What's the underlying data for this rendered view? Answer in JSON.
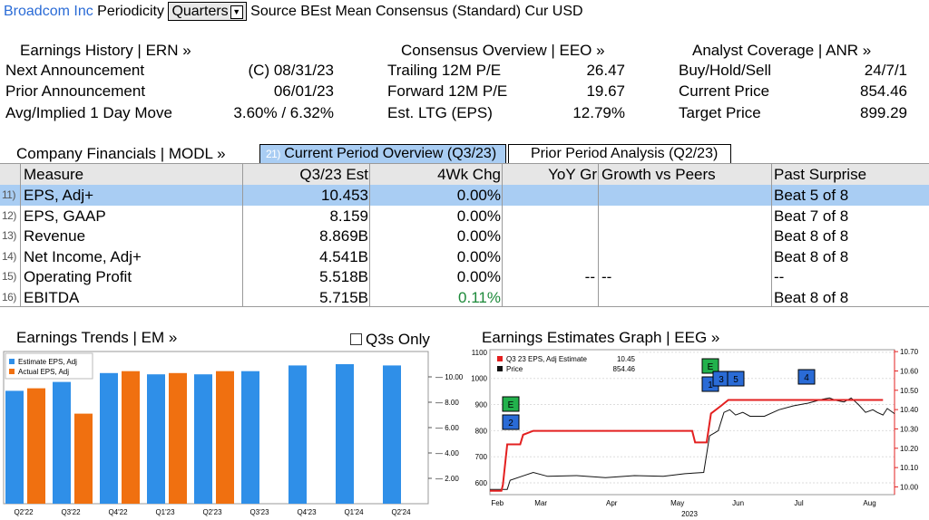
{
  "header": {
    "security": "Broadcom Inc",
    "periodicity_label": "Periodicity",
    "periodicity_value": "Quarters",
    "source_label": "Source",
    "source_value": "BEst Mean Consensus (Standard)",
    "currency_label": "Cur",
    "currency_value": "USD"
  },
  "earnings_history": {
    "title": "Earnings History | ERN »",
    "rows": [
      {
        "label": "Next Announcement",
        "value": "(C)  08/31/23"
      },
      {
        "label": "Prior Announcement",
        "value": "06/01/23"
      },
      {
        "label": "Avg/Implied 1 Day Move",
        "value": "3.60% / 6.32%"
      }
    ]
  },
  "consensus_overview": {
    "title": "Consensus Overview | EEO »",
    "rows": [
      {
        "label": "Trailing 12M P/E",
        "value": "26.47"
      },
      {
        "label": "Forward 12M P/E",
        "value": "19.67"
      },
      {
        "label": "Est. LTG (EPS)",
        "value": "12.79%"
      }
    ]
  },
  "analyst_coverage": {
    "title": "Analyst Coverage | ANR »",
    "rows": [
      {
        "label": "Buy/Hold/Sell",
        "value": "24/7/1"
      },
      {
        "label": "Current Price",
        "value": "854.46"
      },
      {
        "label": "Target Price",
        "value": "899.29"
      }
    ]
  },
  "financials": {
    "title": "Company Financials | MODL »",
    "tab_current_num": "21)",
    "tab_current": "Current Period Overview (Q3/23)",
    "tab_prior": "Prior Period Analysis (Q2/23)",
    "columns": [
      "Measure",
      "Q3/23 Est",
      "4Wk Chg",
      "YoY Gr",
      "Growth vs Peers",
      "Past Surprise"
    ],
    "rows": [
      {
        "num": "11)",
        "measure": "EPS, Adj+",
        "est": "10.453",
        "chg": "0.00%",
        "yoy": "",
        "peers": "",
        "surprise": "Beat 5 of 8"
      },
      {
        "num": "12)",
        "measure": "EPS, GAAP",
        "est": "8.159",
        "chg": "0.00%",
        "yoy": "",
        "peers": "",
        "surprise": "Beat 7 of 8"
      },
      {
        "num": "13)",
        "measure": "Revenue",
        "est": "8.869B",
        "chg": "0.00%",
        "yoy": "",
        "peers": "",
        "surprise": "Beat 8 of 8"
      },
      {
        "num": "14)",
        "measure": "Net Income, Adj+",
        "est": "4.541B",
        "chg": "0.00%",
        "yoy": "",
        "peers": "",
        "surprise": "Beat 8 of 8"
      },
      {
        "num": "15)",
        "measure": "Operating Profit",
        "est": "5.518B",
        "chg": "0.00%",
        "yoy": "--",
        "peers": "--",
        "surprise": "--"
      },
      {
        "num": "16)",
        "measure": "EBITDA",
        "est": "5.715B",
        "chg": "0.11%",
        "yoy": "",
        "peers": "",
        "surprise": "Beat 8 of 8"
      }
    ]
  },
  "earnings_trends": {
    "title": "Earnings Trends | EM »",
    "q3s_only_label": "Q3s Only"
  },
  "earnings_graph": {
    "title": "Earnings Estimates Graph | EEG »"
  },
  "colors": {
    "estimate": "#2f8fe8",
    "actual": "#f07010",
    "est_line": "#e32020",
    "price_line": "#111111",
    "link": "#2a6bd6",
    "selected_row": "#a9cdf3",
    "green_marker": "#22b14c",
    "blue_marker": "#2a6bd6"
  },
  "chart_data": [
    {
      "type": "bar",
      "title": "",
      "legend": [
        "Estimate EPS, Adj",
        "Actual EPS, Adj"
      ],
      "legend_position": "top-left",
      "y_axis_side": "right",
      "ylim": [
        0,
        12
      ],
      "yticks": [
        "2.00",
        "4.00",
        "6.00",
        "8.00",
        "10.00"
      ],
      "categories": [
        "Q2'22",
        "Q3'22",
        "Q4'22",
        "Q1'23",
        "Q2'23",
        "Q3'23",
        "Q4'23",
        "Q1'24",
        "Q2'24"
      ],
      "series": [
        {
          "name": "Estimate EPS, Adj",
          "values": [
            8.9,
            9.6,
            10.3,
            10.2,
            10.2,
            10.45,
            10.9,
            11.0,
            10.9
          ]
        },
        {
          "name": "Actual EPS, Adj",
          "values": [
            9.1,
            7.1,
            10.45,
            10.3,
            10.45,
            null,
            null,
            null,
            null
          ]
        }
      ]
    },
    {
      "type": "line",
      "title": "",
      "legend": [
        {
          "name": "Q3 23 EPS, Adj Estimate",
          "value": "10.45"
        },
        {
          "name": "Price",
          "value": "854.46"
        }
      ],
      "legend_position": "top-left",
      "x_ticks": [
        "Feb",
        "Mar",
        "Apr",
        "May",
        "Jun",
        "Jul",
        "Aug"
      ],
      "x_year": "2023",
      "left_axis": {
        "ylim": [
          555,
          1110
        ],
        "ticks": [
          "600",
          "700",
          "800",
          "900",
          "1000",
          "1100"
        ]
      },
      "right_axis": {
        "ylim": [
          9.96,
          10.71
        ],
        "ticks": [
          "10.00",
          "10.10",
          "10.20",
          "10.30",
          "10.40",
          "10.50",
          "10.60",
          "10.70"
        ]
      },
      "series": [
        {
          "name": "Q3 23 EPS, Adj Estimate",
          "axis": "right",
          "points": [
            [
              0,
              9.98
            ],
            [
              8,
              9.98
            ],
            [
              9,
              10.01
            ],
            [
              12,
              10.22
            ],
            [
              21,
              10.22
            ],
            [
              23,
              10.27
            ],
            [
              30,
              10.29
            ],
            [
              140,
              10.29
            ],
            [
              142,
              10.23
            ],
            [
              150,
              10.23
            ],
            [
              152,
              10.33
            ],
            [
              153,
              10.38
            ],
            [
              160,
              10.42
            ],
            [
              165,
              10.45
            ],
            [
              272,
              10.45
            ]
          ]
        },
        {
          "name": "Price",
          "axis": "left",
          "points": [
            [
              0,
              575
            ],
            [
              12,
              575
            ],
            [
              14,
              610
            ],
            [
              22,
              625
            ],
            [
              30,
              640
            ],
            [
              40,
              625
            ],
            [
              60,
              628
            ],
            [
              80,
              620
            ],
            [
              100,
              628
            ],
            [
              120,
              625
            ],
            [
              135,
              635
            ],
            [
              148,
              640
            ],
            [
              150,
              710
            ],
            [
              152,
              780
            ],
            [
              155,
              790
            ],
            [
              158,
              800
            ],
            [
              162,
              870
            ],
            [
              166,
              880
            ],
            [
              170,
              860
            ],
            [
              175,
              870
            ],
            [
              180,
              855
            ],
            [
              190,
              855
            ],
            [
              200,
              880
            ],
            [
              210,
              895
            ],
            [
              220,
              905
            ],
            [
              230,
              920
            ],
            [
              235,
              925
            ],
            [
              240,
              915
            ],
            [
              245,
              910
            ],
            [
              250,
              925
            ],
            [
              255,
              900
            ],
            [
              260,
              870
            ],
            [
              265,
              880
            ],
            [
              268,
              870
            ],
            [
              272,
              860
            ],
            [
              275,
              885
            ],
            [
              280,
              865
            ]
          ]
        }
      ],
      "markers": [
        {
          "label": "E",
          "color": "green"
        },
        {
          "label": "2",
          "color": "blue"
        },
        {
          "label": "E",
          "color": "green"
        },
        {
          "label": "1",
          "color": "blue"
        },
        {
          "label": "3",
          "color": "blue"
        },
        {
          "label": "5",
          "color": "blue"
        },
        {
          "label": "4",
          "color": "blue"
        }
      ]
    }
  ]
}
